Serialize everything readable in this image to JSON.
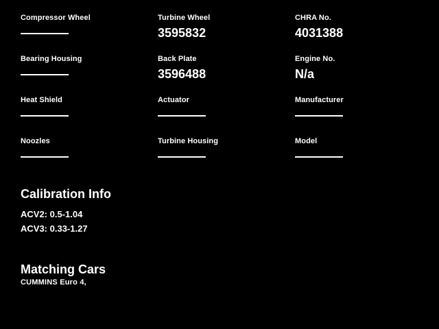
{
  "page": {
    "background_color": "#000000",
    "text_color": "#ffffff"
  },
  "specs": {
    "fields": [
      {
        "label": "Compressor Wheel",
        "value": ""
      },
      {
        "label": "Turbine Wheel",
        "value": "3595832"
      },
      {
        "label": "CHRA No.",
        "value": "4031388"
      },
      {
        "label": "Bearing Housing",
        "value": ""
      },
      {
        "label": "Back Plate",
        "value": "3596488"
      },
      {
        "label": "Engine No.",
        "value": "N/a"
      },
      {
        "label": "Heat Shield",
        "value": ""
      },
      {
        "label": "Actuator",
        "value": ""
      },
      {
        "label": "Manufacturer",
        "value": ""
      },
      {
        "label": "Noozles",
        "value": ""
      },
      {
        "label": "Turbine Housing",
        "value": ""
      },
      {
        "label": "Model",
        "value": ""
      }
    ]
  },
  "calibration": {
    "title": "Calibration Info",
    "entries": [
      "ACV2: 0.5-1.04",
      "ACV3: 0.33-1.27"
    ]
  },
  "matching_cars": {
    "title": "Matching Cars",
    "text": "CUMMINS Euro 4,"
  }
}
